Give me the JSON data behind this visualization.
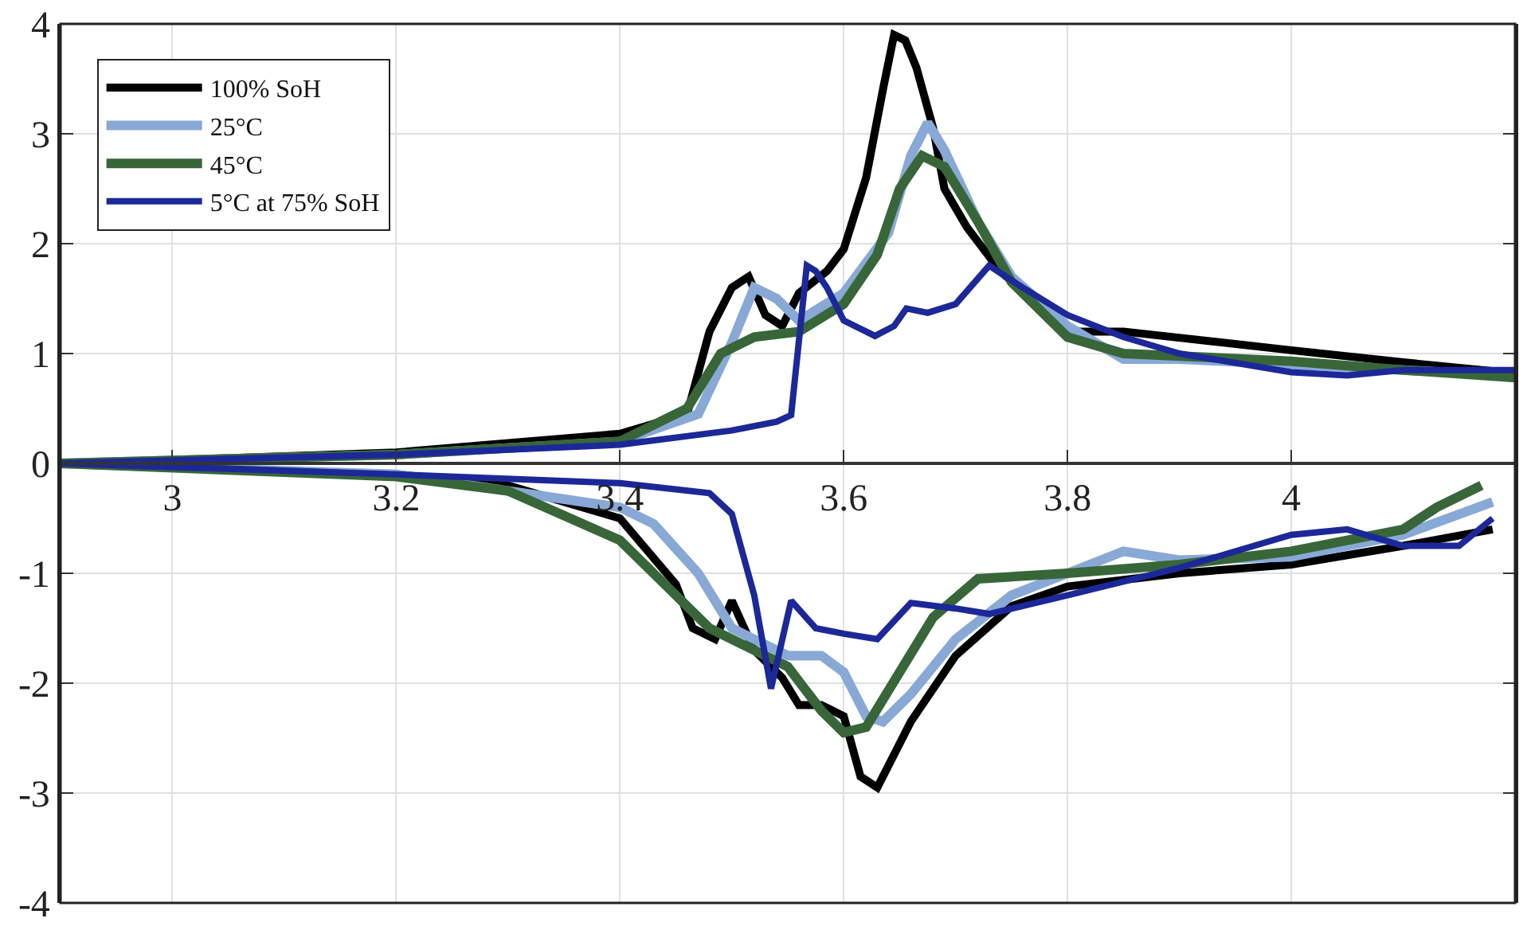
{
  "chart_data": {
    "type": "line",
    "series": [
      {
        "name": "100% SoH",
        "color": "#000000",
        "x": [
          2.9,
          3.0,
          3.2,
          3.4,
          3.46,
          3.48,
          3.5,
          3.515,
          3.53,
          3.545,
          3.56,
          3.585,
          3.6,
          3.62,
          3.635,
          3.645,
          3.655,
          3.665,
          3.68,
          3.69,
          3.71,
          3.74,
          3.8,
          3.85,
          4.0,
          4.1,
          4.2
        ],
        "values": [
          0,
          0.03,
          0.1,
          0.27,
          0.45,
          1.2,
          1.6,
          1.7,
          1.35,
          1.25,
          1.55,
          1.75,
          1.95,
          2.6,
          3.4,
          3.9,
          3.85,
          3.6,
          3.05,
          2.5,
          2.15,
          1.75,
          1.2,
          1.2,
          1.03,
          0.92,
          0.82
        ]
      },
      {
        "color": "#000000",
        "x": [
          2.9,
          3.0,
          3.2,
          3.3,
          3.4,
          3.45,
          3.465,
          3.485,
          3.5,
          3.52,
          3.545,
          3.56,
          3.58,
          3.6,
          3.615,
          3.63,
          3.64,
          3.66,
          3.7,
          3.75,
          3.8,
          3.9,
          4.0,
          4.1,
          4.18
        ],
        "values": [
          0,
          -0.03,
          -0.1,
          -0.2,
          -0.5,
          -1.1,
          -1.5,
          -1.6,
          -1.25,
          -1.7,
          -1.95,
          -2.2,
          -2.2,
          -2.3,
          -2.85,
          -2.95,
          -2.75,
          -2.35,
          -1.75,
          -1.3,
          -1.12,
          -1.0,
          -0.92,
          -0.75,
          -0.6
        ]
      },
      {
        "name": "25°C",
        "color": "#88a9d6",
        "x": [
          2.9,
          3.2,
          3.4,
          3.47,
          3.5,
          3.52,
          3.54,
          3.56,
          3.6,
          3.64,
          3.66,
          3.675,
          3.69,
          3.72,
          3.75,
          3.8,
          3.85,
          3.9,
          4.0,
          4.1,
          4.19
        ],
        "values": [
          0,
          0.08,
          0.2,
          0.45,
          1.1,
          1.6,
          1.5,
          1.3,
          1.55,
          2.1,
          2.8,
          3.1,
          2.85,
          2.2,
          1.7,
          1.25,
          0.95,
          0.95,
          0.9,
          0.85,
          0.8
        ]
      },
      {
        "color": "#88a9d6",
        "x": [
          2.9,
          3.2,
          3.4,
          3.43,
          3.47,
          3.5,
          3.52,
          3.55,
          3.58,
          3.6,
          3.62,
          3.635,
          3.66,
          3.7,
          3.75,
          3.8,
          3.85,
          3.9,
          4.0,
          4.1,
          4.18
        ],
        "values": [
          0,
          -0.1,
          -0.4,
          -0.55,
          -1.0,
          -1.5,
          -1.6,
          -1.75,
          -1.75,
          -1.9,
          -2.3,
          -2.35,
          -2.1,
          -1.6,
          -1.2,
          -1.0,
          -0.8,
          -0.88,
          -0.85,
          -0.65,
          -0.35
        ]
      },
      {
        "name": "45°C",
        "color": "#386639",
        "x": [
          2.9,
          3.2,
          3.4,
          3.46,
          3.49,
          3.52,
          3.56,
          3.6,
          3.63,
          3.65,
          3.67,
          3.69,
          3.72,
          3.75,
          3.8,
          3.85,
          4.0,
          4.1,
          4.2
        ],
        "values": [
          0,
          0.08,
          0.2,
          0.5,
          1.0,
          1.15,
          1.2,
          1.45,
          1.9,
          2.5,
          2.8,
          2.7,
          2.2,
          1.65,
          1.15,
          1.0,
          0.93,
          0.85,
          0.78
        ]
      },
      {
        "color": "#386639",
        "x": [
          2.9,
          3.2,
          3.3,
          3.4,
          3.43,
          3.48,
          3.52,
          3.55,
          3.58,
          3.6,
          3.62,
          3.65,
          3.68,
          3.72,
          3.8,
          3.9,
          4.0,
          4.1,
          4.13,
          4.17
        ],
        "values": [
          0,
          -0.12,
          -0.25,
          -0.7,
          -1.0,
          -1.5,
          -1.7,
          -1.85,
          -2.25,
          -2.45,
          -2.4,
          -1.9,
          -1.4,
          -1.05,
          -1.0,
          -0.92,
          -0.8,
          -0.6,
          -0.4,
          -0.2
        ]
      },
      {
        "name": "5°C at 75% SoH",
        "color": "#1c2898",
        "x": [
          2.9,
          3.2,
          3.4,
          3.5,
          3.54,
          3.553,
          3.567,
          3.575,
          3.585,
          3.6,
          3.628,
          3.645,
          3.656,
          3.675,
          3.7,
          3.73,
          3.76,
          3.8,
          3.85,
          3.9,
          4.0,
          4.05,
          4.1,
          4.2
        ],
        "values": [
          0,
          0.08,
          0.17,
          0.3,
          0.38,
          0.44,
          1.8,
          1.75,
          1.6,
          1.3,
          1.16,
          1.25,
          1.41,
          1.37,
          1.45,
          1.8,
          1.6,
          1.35,
          1.15,
          1.0,
          0.83,
          0.8,
          0.85,
          0.85
        ]
      },
      {
        "color": "#1c2898",
        "x": [
          2.9,
          3.2,
          3.4,
          3.48,
          3.5,
          3.52,
          3.535,
          3.553,
          3.575,
          3.6,
          3.63,
          3.66,
          3.7,
          3.73,
          3.8,
          3.9,
          4.0,
          4.05,
          4.1,
          4.15,
          4.18
        ],
        "values": [
          0,
          -0.1,
          -0.18,
          -0.27,
          -0.46,
          -1.2,
          -2.05,
          -1.25,
          -1.5,
          -1.55,
          -1.6,
          -1.27,
          -1.32,
          -1.37,
          -1.2,
          -0.95,
          -0.65,
          -0.6,
          -0.75,
          -0.75,
          -0.5
        ]
      }
    ],
    "xlim": [
      2.9,
      4.2
    ],
    "xticks": [
      3,
      3.2,
      3.4,
      3.6,
      3.8,
      4
    ],
    "ylim": [
      -4,
      4
    ],
    "yticks": [
      -4,
      -3,
      -2,
      -1,
      0,
      1,
      2,
      3,
      4
    ],
    "grid": true,
    "legend": "top left",
    "marker": "none",
    "line_style": "solid"
  }
}
